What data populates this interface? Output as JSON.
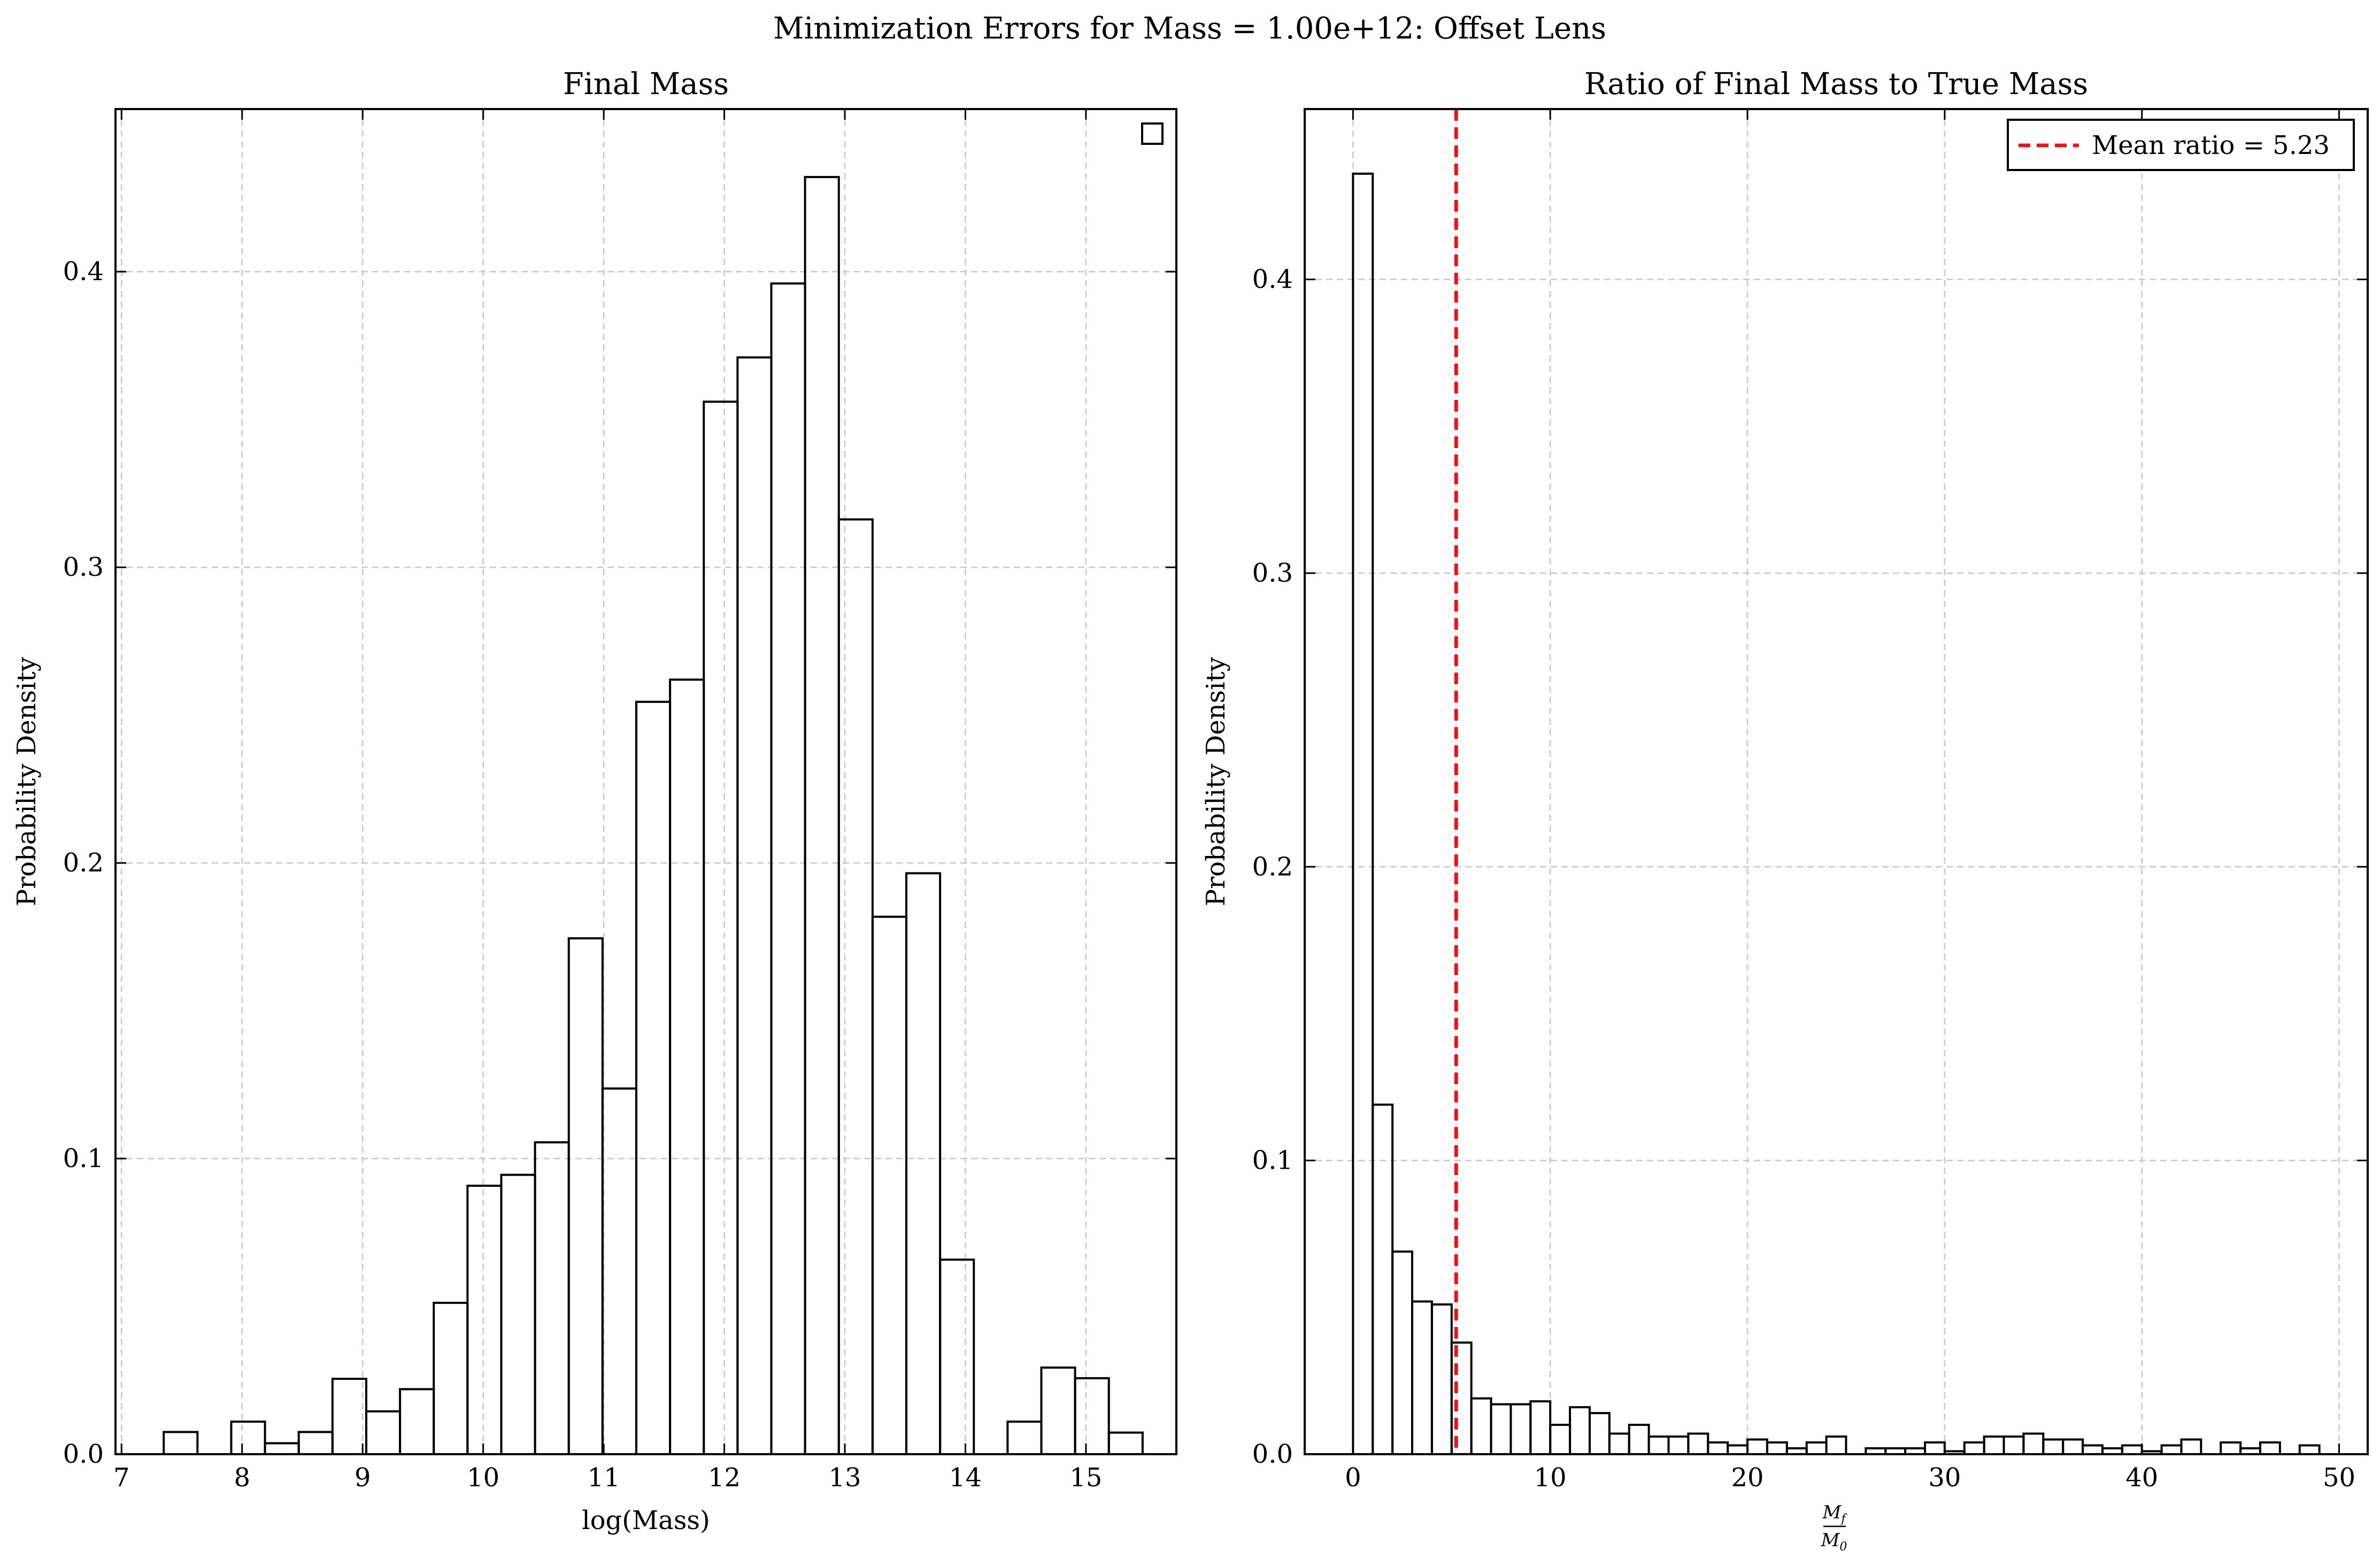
{
  "figure": {
    "suptitle": "Minimization Errors for Mass = 1.00e+12: Offset Lens"
  },
  "chart_data": [
    {
      "type": "histogram",
      "title": "Final Mass",
      "xlabel": "log(Mass)",
      "ylabel": "Probability Density",
      "xlim": [
        6.95,
        15.75
      ],
      "ylim": [
        0.0,
        0.455
      ],
      "xticks": [
        7,
        8,
        9,
        10,
        11,
        12,
        13,
        14,
        15
      ],
      "xtick_labels": [
        "7",
        "8",
        "9",
        "10",
        "11",
        "12",
        "13",
        "14",
        "15"
      ],
      "yticks": [
        0.0,
        0.1,
        0.2,
        0.3,
        0.4
      ],
      "ytick_labels": [
        "0.0",
        "0.1",
        "0.2",
        "0.3",
        "0.4"
      ],
      "grid": true,
      "legend": {
        "placement": "top-right",
        "entries": [
          {
            "label": "",
            "style": "hollow-box"
          }
        ]
      },
      "bins": [
        {
          "x0": 7.35,
          "x1": 7.63,
          "value": 0.0075
        },
        {
          "x0": 7.63,
          "x1": 7.91,
          "value": 0.0
        },
        {
          "x0": 7.91,
          "x1": 8.19,
          "value": 0.011
        },
        {
          "x0": 8.19,
          "x1": 8.47,
          "value": 0.0037
        },
        {
          "x0": 8.47,
          "x1": 8.75,
          "value": 0.0075
        },
        {
          "x0": 8.75,
          "x1": 9.03,
          "value": 0.0255
        },
        {
          "x0": 9.03,
          "x1": 9.31,
          "value": 0.0145
        },
        {
          "x0": 9.31,
          "x1": 9.59,
          "value": 0.022
        },
        {
          "x0": 9.59,
          "x1": 9.87,
          "value": 0.0512
        },
        {
          "x0": 9.87,
          "x1": 10.15,
          "value": 0.0908
        },
        {
          "x0": 10.15,
          "x1": 10.43,
          "value": 0.0945
        },
        {
          "x0": 10.43,
          "x1": 10.71,
          "value": 0.1055
        },
        {
          "x0": 10.71,
          "x1": 10.99,
          "value": 0.1745
        },
        {
          "x0": 10.99,
          "x1": 11.27,
          "value": 0.1237
        },
        {
          "x0": 11.27,
          "x1": 11.55,
          "value": 0.2545
        },
        {
          "x0": 11.55,
          "x1": 11.83,
          "value": 0.262
        },
        {
          "x0": 11.83,
          "x1": 12.11,
          "value": 0.356
        },
        {
          "x0": 12.11,
          "x1": 12.39,
          "value": 0.371
        },
        {
          "x0": 12.39,
          "x1": 12.67,
          "value": 0.396
        },
        {
          "x0": 12.67,
          "x1": 12.95,
          "value": 0.432
        },
        {
          "x0": 12.95,
          "x1": 13.23,
          "value": 0.3162
        },
        {
          "x0": 13.23,
          "x1": 13.51,
          "value": 0.1818
        },
        {
          "x0": 13.51,
          "x1": 13.79,
          "value": 0.1965
        },
        {
          "x0": 13.79,
          "x1": 14.07,
          "value": 0.0658
        },
        {
          "x0": 14.07,
          "x1": 14.35,
          "value": 0.0
        },
        {
          "x0": 14.35,
          "x1": 14.63,
          "value": 0.011
        },
        {
          "x0": 14.63,
          "x1": 14.91,
          "value": 0.0293
        },
        {
          "x0": 14.91,
          "x1": 15.19,
          "value": 0.0257
        },
        {
          "x0": 15.19,
          "x1": 15.47,
          "value": 0.0073
        }
      ]
    },
    {
      "type": "histogram",
      "title": "Ratio of Final Mass to True Mass",
      "xlabel": "M_f / M_0",
      "xlabel_parts": {
        "num_base": "M",
        "num_sub": "f",
        "den_base": "M",
        "den_sub": "0"
      },
      "ylabel": "Probability Density",
      "xlim": [
        -2.45,
        51.45
      ],
      "ylim": [
        0.0,
        0.458
      ],
      "xticks": [
        0,
        10,
        20,
        30,
        40,
        50
      ],
      "xtick_labels": [
        "0",
        "10",
        "20",
        "30",
        "40",
        "50"
      ],
      "yticks": [
        0.0,
        0.1,
        0.2,
        0.3,
        0.4
      ],
      "ytick_labels": [
        "0.0",
        "0.1",
        "0.2",
        "0.3",
        "0.4"
      ],
      "grid": true,
      "mean_line": {
        "value": 5.23,
        "color": "#e8161b",
        "style": "dashed"
      },
      "legend": {
        "placement": "top-right",
        "entries": [
          {
            "label": "Mean ratio = 5.23",
            "color": "#e8161b",
            "style": "dashed-line"
          }
        ]
      },
      "bin_start": 0.0,
      "bin_width": 1.0,
      "values": [
        0.436,
        0.119,
        0.069,
        0.052,
        0.051,
        0.038,
        0.019,
        0.017,
        0.017,
        0.018,
        0.01,
        0.016,
        0.014,
        0.007,
        0.01,
        0.006,
        0.006,
        0.007,
        0.004,
        0.003,
        0.005,
        0.004,
        0.002,
        0.004,
        0.006,
        0.0,
        0.002,
        0.002,
        0.002,
        0.004,
        0.001,
        0.004,
        0.006,
        0.006,
        0.007,
        0.005,
        0.005,
        0.003,
        0.002,
        0.003,
        0.001,
        0.003,
        0.005,
        0.0,
        0.004,
        0.002,
        0.004,
        0.0,
        0.003
      ]
    }
  ]
}
